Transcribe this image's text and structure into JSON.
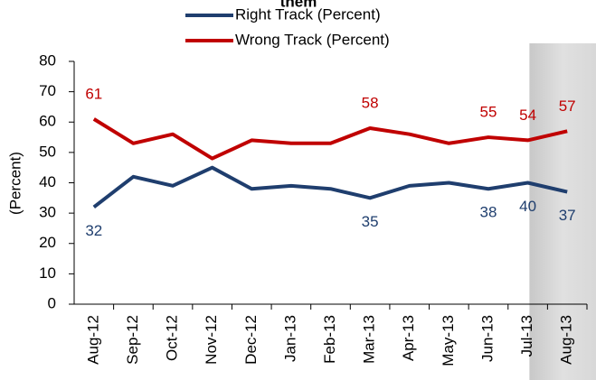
{
  "chart_data": {
    "type": "line",
    "title": "them",
    "y_label": "(Percent)",
    "categories": [
      "Aug-12",
      "Sep-12",
      "Oct-12",
      "Nov-12",
      "Dec-12",
      "Jan-13",
      "Feb-13",
      "Mar-13",
      "Apr-13",
      "May-13",
      "Jun-13",
      "Jul-13",
      "Aug-13"
    ],
    "series": [
      {
        "name": "Right Track (Percent)",
        "color": "#1f3e6e",
        "values": [
          32,
          42,
          39,
          45,
          38,
          39,
          38,
          35,
          39,
          40,
          38,
          40,
          37
        ],
        "value_labels": [
          "32",
          null,
          null,
          null,
          null,
          null,
          null,
          "35",
          null,
          null,
          "38",
          "40",
          "37"
        ]
      },
      {
        "name": "Wrong Track (Percent)",
        "color": "#c00000",
        "values": [
          61,
          53,
          56,
          48,
          54,
          53,
          53,
          58,
          56,
          53,
          55,
          54,
          57
        ],
        "value_labels": [
          "61",
          null,
          null,
          null,
          null,
          null,
          null,
          "58",
          null,
          null,
          "55",
          "54",
          "57"
        ]
      }
    ],
    "ylim": [
      0,
      80
    ],
    "yticks": [
      0,
      10,
      20,
      30,
      40,
      50,
      60,
      70,
      80
    ],
    "highlight": 12,
    "legend": "top"
  }
}
